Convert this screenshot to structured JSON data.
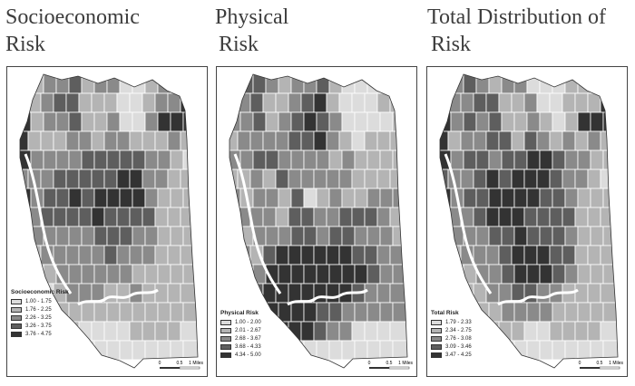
{
  "panels": [
    {
      "id": "socioeconomic",
      "title_line1": "Socioeconomic",
      "title_line2": "Risk",
      "legend_title": "Socioeconomic Risk",
      "classes": [
        {
          "label": "1.00 - 1.75",
          "color": "#dcdcdc"
        },
        {
          "label": "1.76 - 2.25",
          "color": "#b4b4b4"
        },
        {
          "label": "2.26 - 3.25",
          "color": "#8a8a8a"
        },
        {
          "label": "3.26 - 3.75",
          "color": "#5e5e5e"
        },
        {
          "label": "3.76 - 4.75",
          "color": "#333333"
        }
      ],
      "scale": {
        "t0": "0",
        "t1": "0.5",
        "t2": "1 Miles"
      },
      "grid": [
        "11223122001211",
        "11233111001224",
        "41223112002444",
        "41112212211121",
        "42222333332210",
        "22233333442211",
        "42334344442111",
        "22333343333111",
        "22222233322111",
        "21222223222111",
        "21122222211111",
        "11012221121111",
        "11111111111111",
        "11111000011110",
        "11000000000000"
      ]
    },
    {
      "id": "physical",
      "title_line1": "Physical",
      "title_line2": "Risk",
      "legend_title": "Physical Risk",
      "classes": [
        {
          "label": "1.00 - 2.00",
          "color": "#dcdcdc"
        },
        {
          "label": "2.01 - 2.67",
          "color": "#b4b4b4"
        },
        {
          "label": "2.68 - 3.67",
          "color": "#8a8a8a"
        },
        {
          "label": "3.68 - 4.33",
          "color": "#5e5e5e"
        },
        {
          "label": "4.34 - 5.00",
          "color": "#333333"
        }
      ],
      "scale": {
        "t0": "0",
        "t1": "0.5",
        "t2": "1 Miles"
      },
      "grid": [
        "33321223100011",
        "32311234100011",
        "22312343200001",
        "12222334210111",
        "22332222121111",
        "11213222221111",
        "21221301211222",
        "22221332233321",
        "11222332332221",
        "22134444443322",
        "33244444444322",
        "43344444443222",
        "44444443322222",
        "44444443220000",
        "44440000000000"
      ]
    },
    {
      "id": "total",
      "title_line1": "Total Distribution of",
      "title_line2": "Risk",
      "legend_title": "Total Risk",
      "classes": [
        {
          "label": "1.79 - 2.33",
          "color": "#dcdcdc"
        },
        {
          "label": "2.34 - 2.75",
          "color": "#b4b4b4"
        },
        {
          "label": "2.76 - 3.08",
          "color": "#8a8a8a"
        },
        {
          "label": "3.09 - 3.46",
          "color": "#5e5e5e"
        },
        {
          "label": "3.47 - 4.25",
          "color": "#333333"
        }
      ],
      "scale": {
        "t0": "0",
        "t1": "0.5",
        "t2": "1 Miles"
      },
      "grid": [
        "22321220001112",
        "32233112001114",
        "42323112101444",
        "41223313212121",
        "42332334432211",
        "32234344432210",
        "42334444332111",
        "22234443333111",
        "22223343332111",
        "21222344433111",
        "11122344432111",
        "11112233221111",
        "11111222211111",
        "11111110011110",
        "11000000000000"
      ]
    }
  ]
}
